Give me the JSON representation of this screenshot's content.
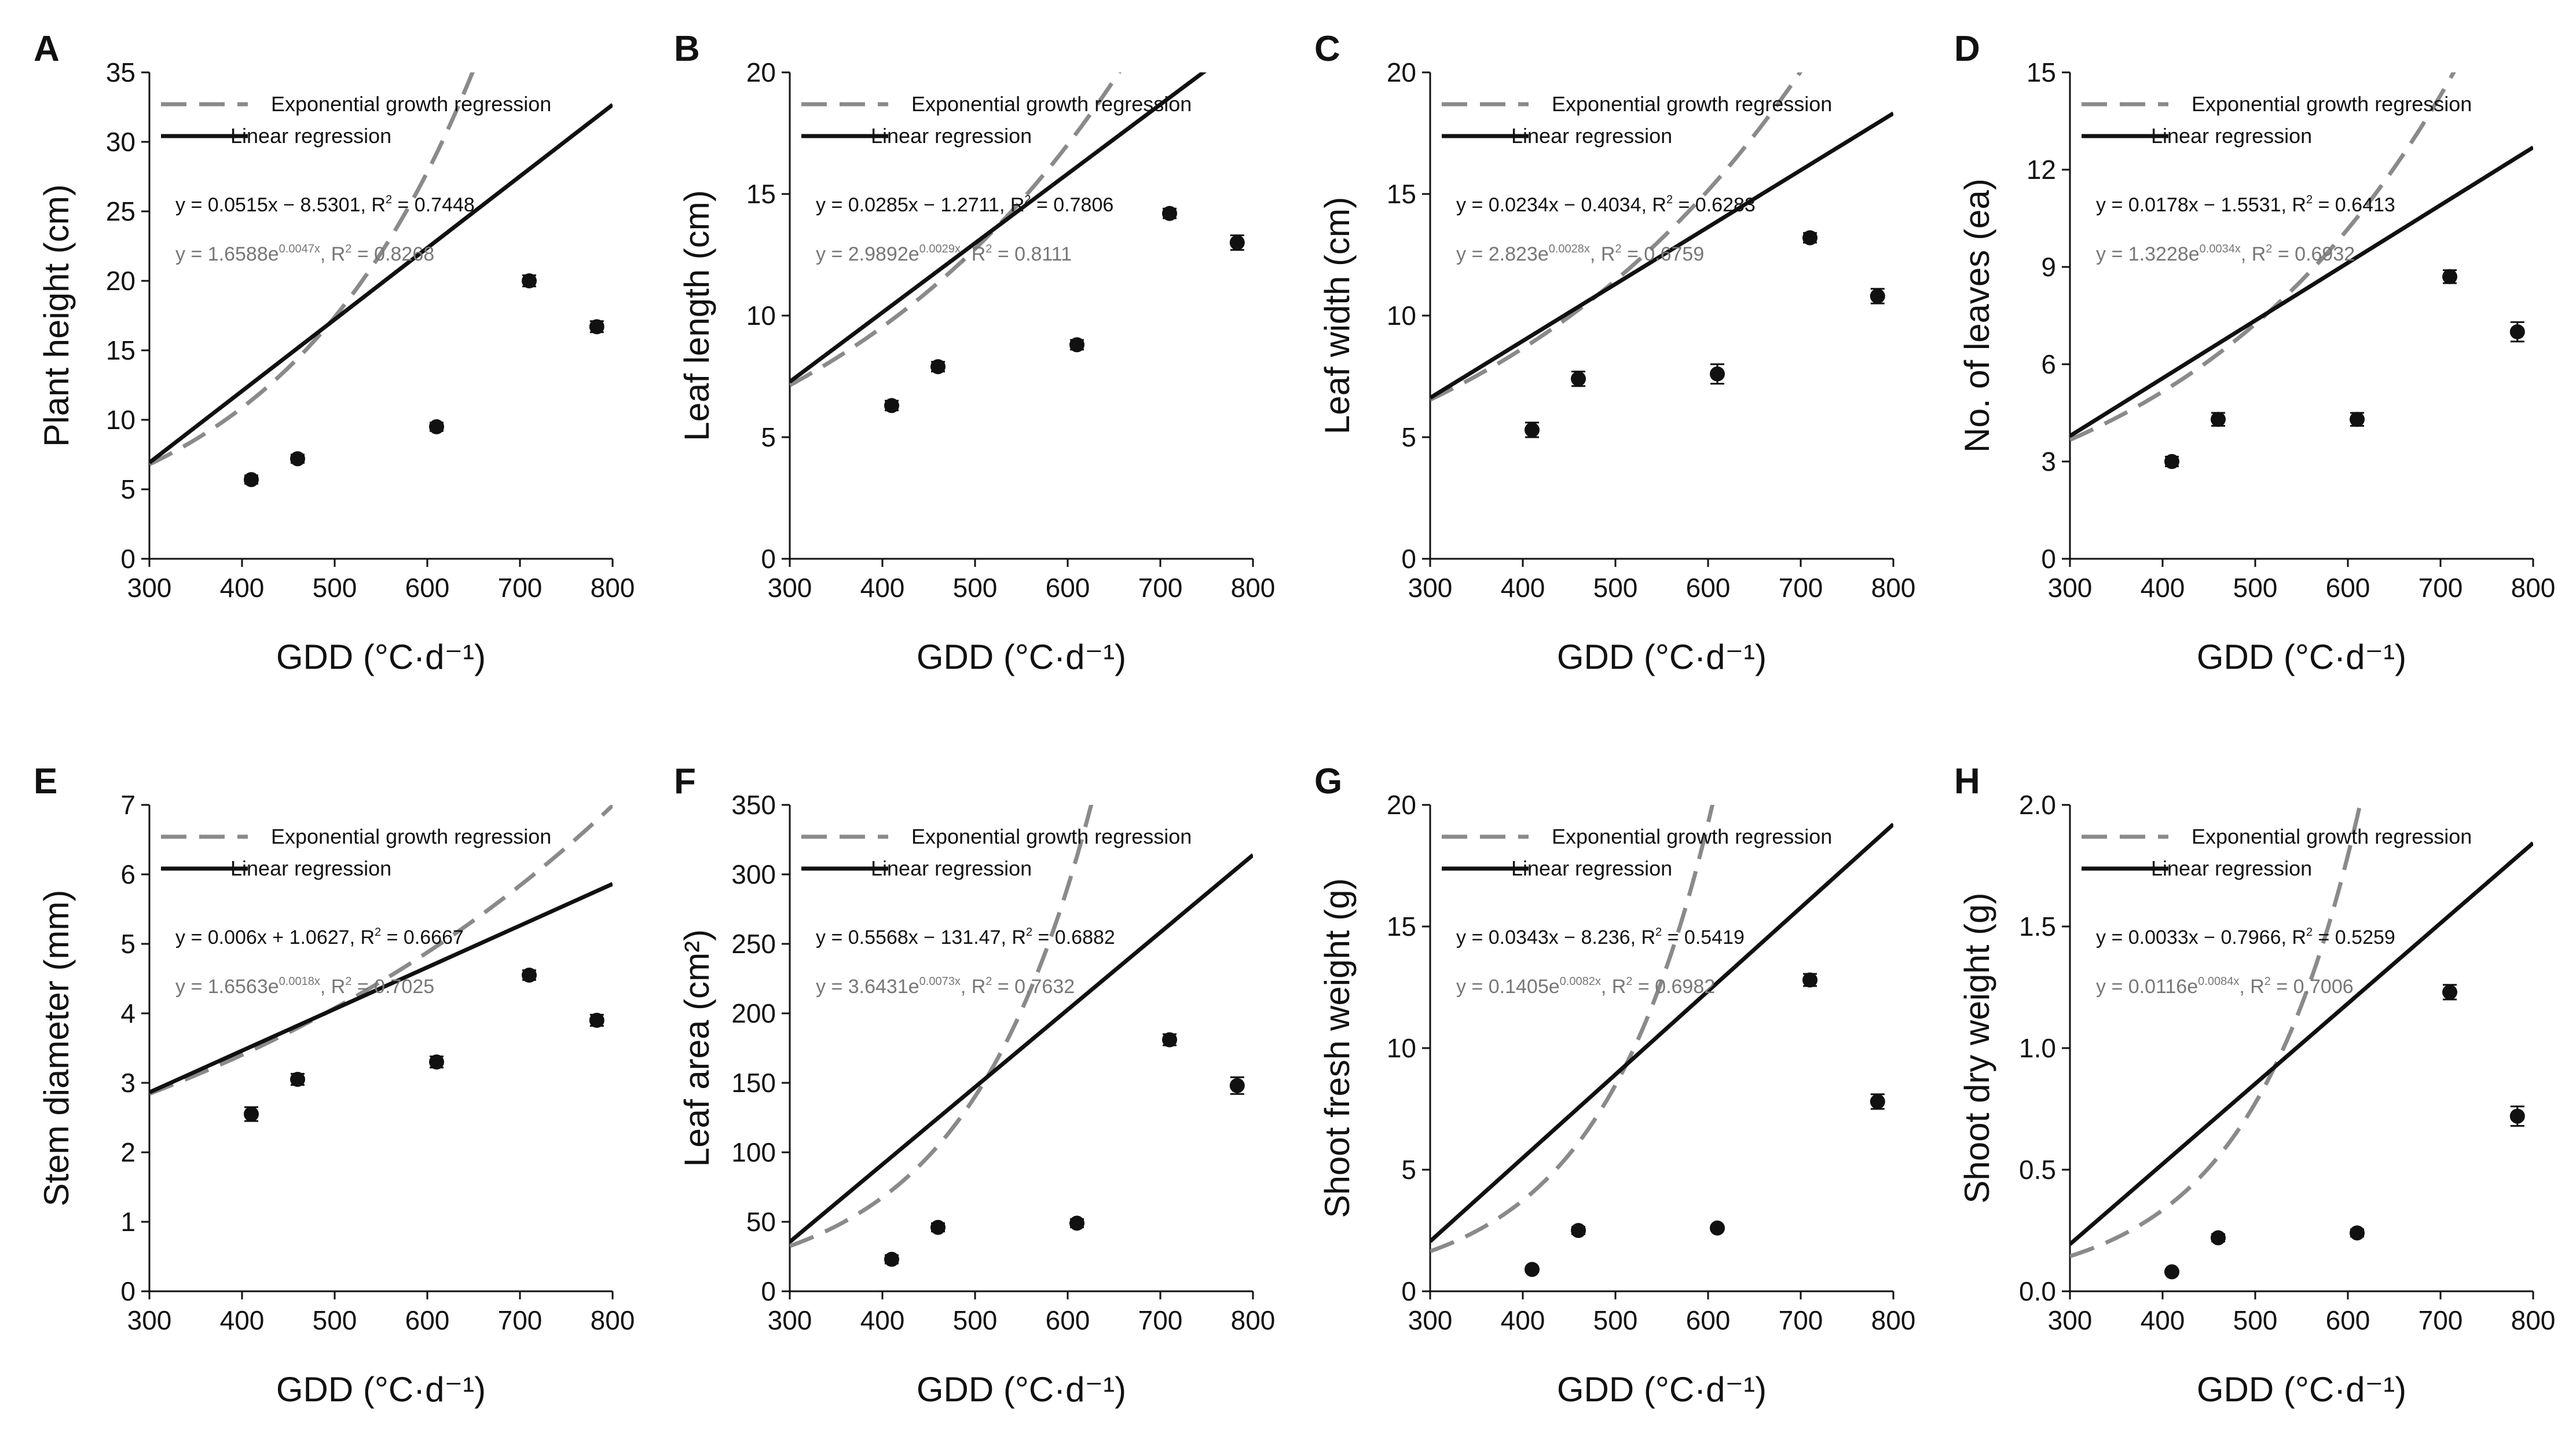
{
  "figure": {
    "legend": {
      "exponential": "Exponential growth regression",
      "linear": "Linear regression"
    },
    "colors": {
      "linear": "#111111",
      "exponential": "#8a8a8a",
      "points": "#111111",
      "axes": "#111111",
      "text_linear": "#111111",
      "text_exponential": "#777777"
    },
    "x_axis_title": "GDD (°C·d⁻¹)"
  },
  "chart_data": [
    {
      "type": "scatter",
      "letter": "A",
      "ylabel": "Plant height (cm)",
      "xlabel": "GDD (°C·d⁻¹)",
      "xlim": [
        300,
        800
      ],
      "xticks": [
        300,
        400,
        500,
        600,
        700,
        800
      ],
      "xtick_labels": [
        "300",
        "400",
        "500",
        "600",
        "700",
        "800"
      ],
      "ylim": [
        0,
        35
      ],
      "yticks": [
        0,
        5,
        10,
        15,
        20,
        25,
        30,
        35
      ],
      "ytick_labels": [
        "0",
        "5",
        "10",
        "15",
        "20",
        "25",
        "30",
        "35"
      ],
      "x": [
        410,
        460,
        610,
        710,
        783
      ],
      "y": [
        5.7,
        7.2,
        9.5,
        20.0,
        16.7
      ],
      "err": [
        0.3,
        0.3,
        0.3,
        0.4,
        0.4
      ],
      "linear": {
        "slope": 0.0515,
        "intercept": -8.5301
      },
      "exponential": {
        "a": 1.6588,
        "b": 0.0047
      },
      "linear_eq": {
        "text": "y = 0.0515x − 8.5301, R",
        "r2": " = 0.7448"
      },
      "exp_eq": {
        "base": "y = 1.6588e",
        "exp": "0.0047x",
        "r2": " = 0.8268"
      }
    },
    {
      "type": "scatter",
      "letter": "B",
      "ylabel": "Leaf length (cm)",
      "xlabel": "GDD (°C·d⁻¹)",
      "xlim": [
        300,
        800
      ],
      "xticks": [
        300,
        400,
        500,
        600,
        700,
        800
      ],
      "xtick_labels": [
        "300",
        "400",
        "500",
        "600",
        "700",
        "800"
      ],
      "ylim": [
        0,
        20
      ],
      "yticks": [
        0,
        5,
        10,
        15,
        20
      ],
      "ytick_labels": [
        "0",
        "5",
        "10",
        "15",
        "20"
      ],
      "x": [
        410,
        460,
        610,
        710,
        783
      ],
      "y": [
        6.3,
        7.9,
        8.8,
        14.2,
        13.0
      ],
      "err": [
        0.2,
        0.2,
        0.2,
        0.2,
        0.3
      ],
      "linear": {
        "slope": 0.0285,
        "intercept": -1.2711
      },
      "exponential": {
        "a": 2.9892,
        "b": 0.0029
      },
      "linear_eq": {
        "text": "y = 0.0285x − 1.2711, R",
        "r2": " = 0.7806"
      },
      "exp_eq": {
        "base": "y = 2.9892e",
        "exp": "0.0029x",
        "r2": " = 0.8111"
      }
    },
    {
      "type": "scatter",
      "letter": "C",
      "ylabel": "Leaf width (cm)",
      "xlabel": "GDD (°C·d⁻¹)",
      "xlim": [
        300,
        800
      ],
      "xticks": [
        300,
        400,
        500,
        600,
        700,
        800
      ],
      "xtick_labels": [
        "300",
        "400",
        "500",
        "600",
        "700",
        "800"
      ],
      "ylim": [
        0,
        20
      ],
      "yticks": [
        0,
        5,
        10,
        15,
        20
      ],
      "ytick_labels": [
        "0",
        "5",
        "10",
        "15",
        "20"
      ],
      "x": [
        410,
        460,
        610,
        710,
        783
      ],
      "y": [
        5.3,
        7.4,
        7.6,
        13.2,
        10.8
      ],
      "err": [
        0.3,
        0.3,
        0.4,
        0.2,
        0.3
      ],
      "linear": {
        "slope": 0.0234,
        "intercept": -0.4034
      },
      "exponential": {
        "a": 2.823,
        "b": 0.0028
      },
      "linear_eq": {
        "text": "y = 0.0234x − 0.4034, R",
        "r2": " = 0.6283"
      },
      "exp_eq": {
        "base": "y = 2.823e",
        "exp": "0.0028x",
        "r2": " = 0.6759"
      }
    },
    {
      "type": "scatter",
      "letter": "D",
      "ylabel": "No. of leaves (ea)",
      "xlabel": "GDD (°C·d⁻¹)",
      "xlim": [
        300,
        800
      ],
      "xticks": [
        300,
        400,
        500,
        600,
        700,
        800
      ],
      "xtick_labels": [
        "300",
        "400",
        "500",
        "600",
        "700",
        "800"
      ],
      "ylim": [
        0,
        15
      ],
      "yticks": [
        0,
        3,
        6,
        9,
        12,
        15
      ],
      "ytick_labels": [
        "0",
        "3",
        "6",
        "9",
        "12",
        "15"
      ],
      "x": [
        410,
        460,
        610,
        710,
        783
      ],
      "y": [
        3.0,
        4.3,
        4.3,
        8.7,
        7.0
      ],
      "err": [
        0.15,
        0.2,
        0.2,
        0.2,
        0.3
      ],
      "linear": {
        "slope": 0.0178,
        "intercept": -1.5531
      },
      "exponential": {
        "a": 1.3228,
        "b": 0.0034
      },
      "linear_eq": {
        "text": "y = 0.0178x − 1.5531, R",
        "r2": " = 0.6413"
      },
      "exp_eq": {
        "base": "y = 1.3228e",
        "exp": "0.0034x",
        "r2": " = 0.6932"
      }
    },
    {
      "type": "scatter",
      "letter": "E",
      "ylabel": "Stem diameter (mm)",
      "xlabel": "GDD (°C·d⁻¹)",
      "xlim": [
        300,
        800
      ],
      "xticks": [
        300,
        400,
        500,
        600,
        700,
        800
      ],
      "xtick_labels": [
        "300",
        "400",
        "500",
        "600",
        "700",
        "800"
      ],
      "ylim": [
        0,
        7
      ],
      "yticks": [
        0,
        1,
        2,
        3,
        4,
        5,
        6,
        7
      ],
      "ytick_labels": [
        "0",
        "1",
        "2",
        "3",
        "4",
        "5",
        "6",
        "7"
      ],
      "x": [
        410,
        460,
        610,
        710,
        783
      ],
      "y": [
        2.55,
        3.05,
        3.3,
        4.55,
        3.9
      ],
      "err": [
        0.1,
        0.08,
        0.08,
        0.07,
        0.08
      ],
      "linear": {
        "slope": 0.006,
        "intercept": 1.0627
      },
      "exponential": {
        "a": 1.6563,
        "b": 0.0018
      },
      "linear_eq": {
        "text": "y = 0.006x + 1.0627, R",
        "r2": " = 0.6667"
      },
      "exp_eq": {
        "base": "y = 1.6563e",
        "exp": "0.0018x",
        "r2": " = 0.7025"
      }
    },
    {
      "type": "scatter",
      "letter": "F",
      "ylabel": "Leaf area (cm²)",
      "xlabel": "GDD (°C·d⁻¹)",
      "xlim": [
        300,
        800
      ],
      "xticks": [
        300,
        400,
        500,
        600,
        700,
        800
      ],
      "xtick_labels": [
        "300",
        "400",
        "500",
        "600",
        "700",
        "800"
      ],
      "ylim": [
        0,
        350
      ],
      "yticks": [
        0,
        50,
        100,
        150,
        200,
        250,
        300,
        350
      ],
      "ytick_labels": [
        "0",
        "50",
        "100",
        "150",
        "200",
        "250",
        "300",
        "350"
      ],
      "x": [
        410,
        460,
        610,
        710,
        783
      ],
      "y": [
        23,
        46,
        49,
        181,
        148
      ],
      "err": [
        3,
        3,
        3,
        4,
        6
      ],
      "linear": {
        "slope": 0.5568,
        "intercept": -131.47
      },
      "exponential": {
        "a": 3.6431,
        "b": 0.0073
      },
      "linear_eq": {
        "text": "y = 0.5568x − 131.47, R",
        "r2": " = 0.6882"
      },
      "exp_eq": {
        "base": "y = 3.6431e",
        "exp": "0.0073x",
        "r2": " = 0.7632"
      }
    },
    {
      "type": "scatter",
      "letter": "G",
      "ylabel": "Shoot fresh weight (g)",
      "xlabel": "GDD (°C·d⁻¹)",
      "xlim": [
        300,
        800
      ],
      "xticks": [
        300,
        400,
        500,
        600,
        700,
        800
      ],
      "xtick_labels": [
        "300",
        "400",
        "500",
        "600",
        "700",
        "800"
      ],
      "ylim": [
        0,
        20
      ],
      "yticks": [
        0,
        5,
        10,
        15,
        20
      ],
      "ytick_labels": [
        "0",
        "5",
        "10",
        "15",
        "20"
      ],
      "x": [
        410,
        460,
        610,
        710,
        783
      ],
      "y": [
        0.9,
        2.5,
        2.6,
        12.8,
        7.8
      ],
      "err": [
        0.1,
        0.15,
        0.1,
        0.25,
        0.3
      ],
      "linear": {
        "slope": 0.0343,
        "intercept": -8.236
      },
      "exponential": {
        "a": 0.1405,
        "b": 0.0082
      },
      "linear_eq": {
        "text": "y = 0.0343x − 8.236, R",
        "r2": " = 0.5419"
      },
      "exp_eq": {
        "base": "y = 0.1405e",
        "exp": "0.0082x",
        "r2": " = 0.6982"
      }
    },
    {
      "type": "scatter",
      "letter": "H",
      "ylabel": "Shoot dry weight (g)",
      "xlabel": "GDD (°C·d⁻¹)",
      "xlim": [
        300,
        800
      ],
      "xticks": [
        300,
        400,
        500,
        600,
        700,
        800
      ],
      "xtick_labels": [
        "300",
        "400",
        "500",
        "600",
        "700",
        "800"
      ],
      "ylim": [
        0,
        2.0
      ],
      "yticks": [
        0,
        0.5,
        1.0,
        1.5,
        2.0
      ],
      "ytick_labels": [
        "0.0",
        "0.5",
        "1.0",
        "1.5",
        "2.0"
      ],
      "x": [
        410,
        460,
        610,
        710,
        783
      ],
      "y": [
        0.08,
        0.22,
        0.24,
        1.23,
        0.72
      ],
      "err": [
        0.01,
        0.015,
        0.015,
        0.03,
        0.04
      ],
      "linear": {
        "slope": 0.0033,
        "intercept": -0.7966
      },
      "exponential": {
        "a": 0.0116,
        "b": 0.0084
      },
      "linear_eq": {
        "text": "y = 0.0033x − 0.7966, R",
        "r2": " = 0.5259"
      },
      "exp_eq": {
        "base": "y = 0.0116e",
        "exp": "0.0084x",
        "r2": " = 0.7006"
      }
    }
  ]
}
